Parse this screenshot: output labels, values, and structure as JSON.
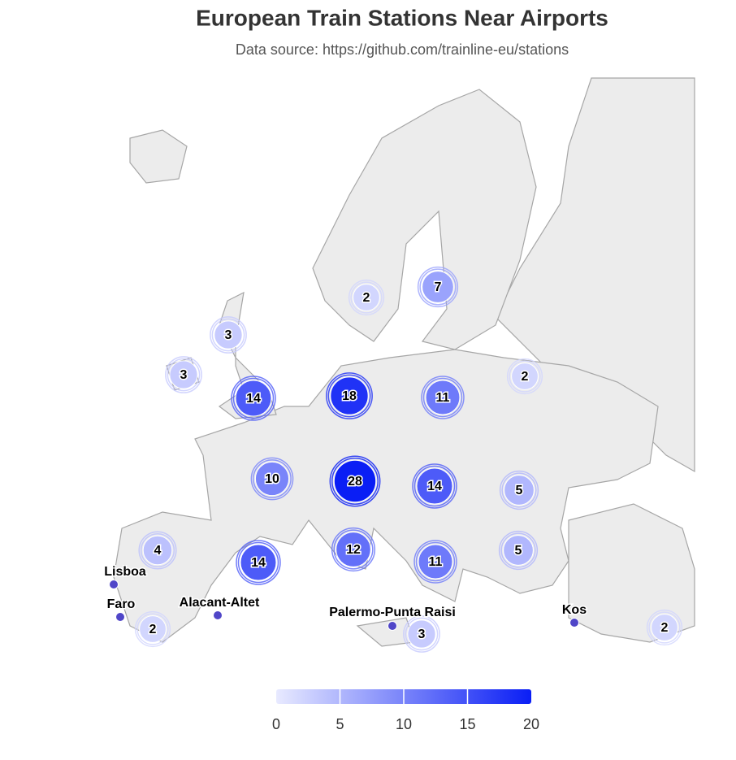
{
  "chart_data": {
    "type": "map",
    "title": "European Train Stations Near Airports",
    "subtitle": "Data source: https://github.com/trainline-eu/stations",
    "clusters": {
      "values": [
        2,
        7,
        3,
        3,
        14,
        18,
        11,
        2,
        10,
        28,
        14,
        5,
        4,
        14,
        12,
        11,
        5,
        2,
        3,
        2
      ]
    },
    "points": {
      "names": [
        "Lisboa",
        "Faro",
        "Alacant-Altet",
        "Palermo-Punta Raisi",
        "Kos"
      ],
      "color": "#5046c8"
    },
    "color_axis": {
      "min": 0,
      "max": 20,
      "ticks": [
        0,
        5,
        10,
        15,
        20
      ],
      "min_color": "#e8eaff",
      "max_color": "#0a1ef5"
    }
  }
}
